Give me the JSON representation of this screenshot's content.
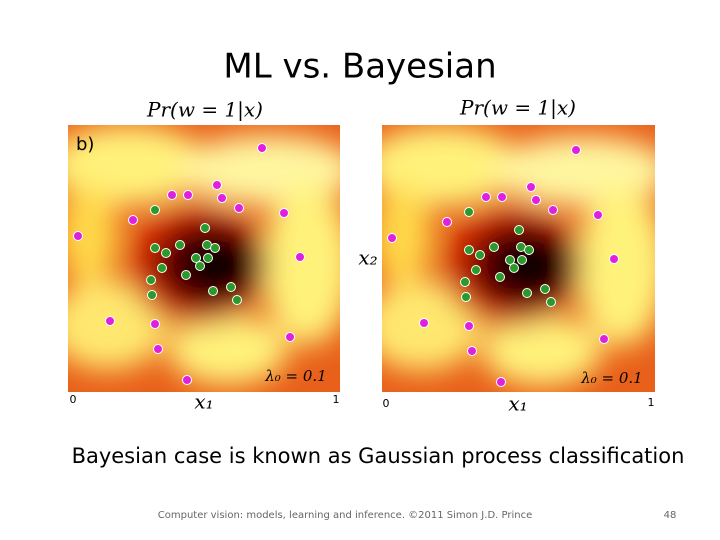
{
  "slide": {
    "title": "ML vs. Bayesian",
    "panels": [
      {
        "heading": "Pr(w = 1|x)",
        "tag": "b)",
        "x_label": "x₁",
        "x_min": "0",
        "x_max": "1",
        "annotation": "λ₀ = 0.1"
      },
      {
        "heading": "Pr(w = 1|x)",
        "x_label": "x₁",
        "x_min": "0",
        "x_max": "1",
        "annotation": "λ₀ = 0.1"
      }
    ],
    "y_label": "x₂",
    "caption": "Bayesian case is known as Gaussian process classification",
    "footer": "Computer vision: models, learning and inference.  ©2011 Simon J.D. Prince",
    "page_number": "48"
  }
}
